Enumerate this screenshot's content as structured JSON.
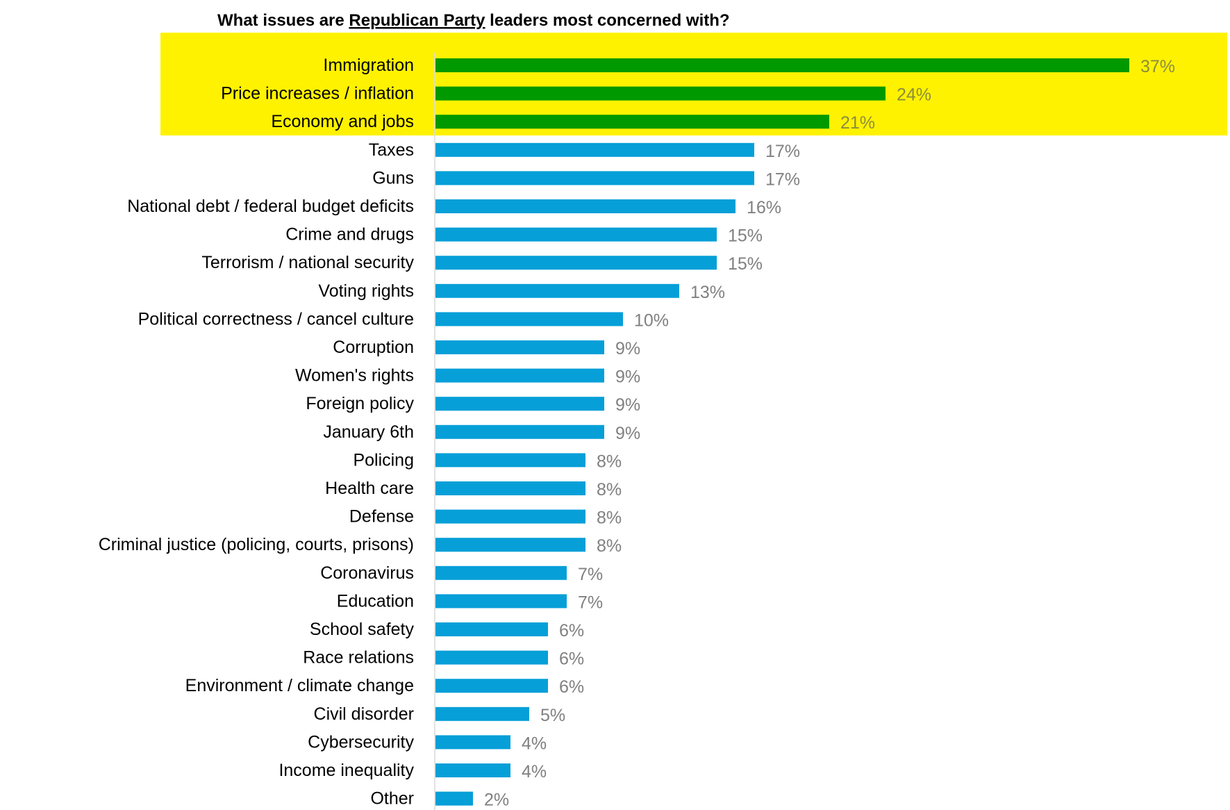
{
  "chart_data": {
    "type": "bar",
    "orientation": "horizontal",
    "title": {
      "prefix": "What issues are ",
      "emphasis": "Republican Party",
      "suffix": " leaders most concerned with?"
    },
    "categories": [
      "Immigration",
      "Price increases / inflation",
      "Economy and jobs",
      "Taxes",
      "Guns",
      "National debt / federal budget deficits",
      "Crime and drugs",
      "Terrorism / national security",
      "Voting rights",
      "Political correctness / cancel culture",
      "Corruption",
      "Women's rights",
      "Foreign policy",
      "January 6th",
      "Policing",
      "Health care",
      "Defense",
      "Criminal justice (policing, courts, prisons)",
      "Coronavirus",
      "Education",
      "School safety",
      "Race relations",
      "Environment / climate change",
      "Civil disorder",
      "Cybersecurity",
      "Income inequality",
      "Other"
    ],
    "values": [
      37,
      24,
      21,
      17,
      17,
      16,
      15,
      15,
      13,
      10,
      9,
      9,
      9,
      9,
      8,
      8,
      8,
      8,
      7,
      7,
      6,
      6,
      6,
      5,
      4,
      4,
      2
    ],
    "value_suffix": "%",
    "highlight_top_n": 3,
    "xlim": [
      0,
      40
    ],
    "grid": false,
    "legend": "none",
    "colors": {
      "highlight_bar": "#009900",
      "default_bar": "#069fd8",
      "highlight_band": "#fff200",
      "highlight_value_label": "#8c8c3c",
      "default_value_label": "#808080",
      "axis_line": "#d9d9d9"
    }
  }
}
